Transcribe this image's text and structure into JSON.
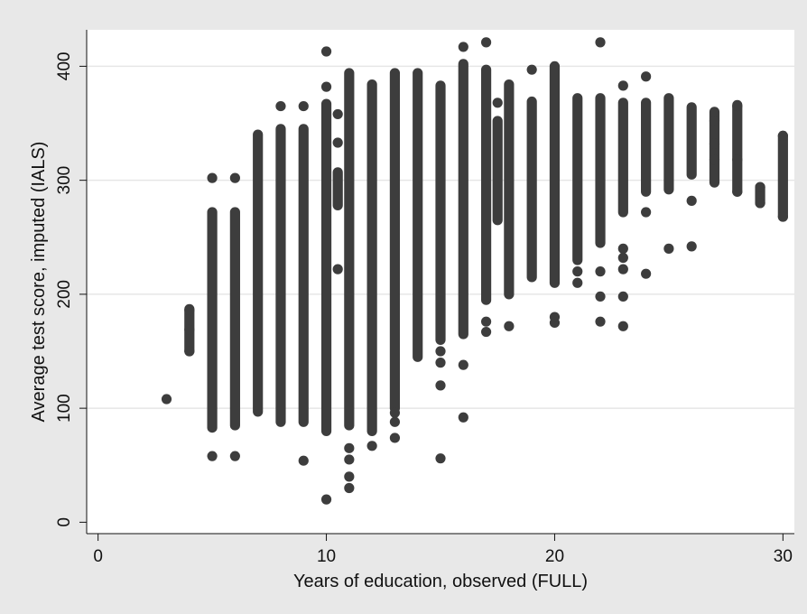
{
  "chart_data": {
    "type": "scatter",
    "title": "",
    "xlabel": "Years of education, observed (FULL)",
    "ylabel": "Average test score, imputed (IALS)",
    "xlim": [
      -0.5,
      30.5
    ],
    "ylim": [
      -10,
      432
    ],
    "xticks": [
      0,
      10,
      20,
      30
    ],
    "yticks": [
      0,
      100,
      200,
      300,
      400
    ],
    "grid": "horizontal",
    "legend": "none",
    "colors": {
      "background": "#e8e8e8",
      "plot_area": "#ffffff",
      "marker": "#3d3d3d",
      "grid": "#e6e6e6"
    },
    "columns": [
      {
        "x": 3,
        "y": [
          108
        ]
      },
      {
        "x": 4,
        "min": 150,
        "max": 187,
        "y": [
          150,
          169,
          186
        ]
      },
      {
        "x": 5,
        "min": 83,
        "max": 272,
        "y": [
          58,
          302
        ]
      },
      {
        "x": 6,
        "min": 85,
        "max": 272,
        "y": [
          58,
          302
        ]
      },
      {
        "x": 7,
        "min": 97,
        "max": 340,
        "y": []
      },
      {
        "x": 8,
        "min": 88,
        "max": 345,
        "y": [
          365
        ]
      },
      {
        "x": 9,
        "min": 88,
        "max": 345,
        "y": [
          54,
          365
        ]
      },
      {
        "x": 10,
        "min": 80,
        "max": 367,
        "y": [
          20,
          382,
          413
        ]
      },
      {
        "x": 10.5,
        "min": 278,
        "max": 307,
        "y": [
          222,
          333,
          358
        ]
      },
      {
        "x": 11,
        "min": 85,
        "max": 394,
        "y": [
          30,
          40,
          55,
          65
        ]
      },
      {
        "x": 12,
        "min": 80,
        "max": 384,
        "y": [
          67
        ]
      },
      {
        "x": 13,
        "min": 100,
        "max": 394,
        "y": [
          74,
          88,
          96
        ]
      },
      {
        "x": 14,
        "min": 145,
        "max": 394,
        "y": []
      },
      {
        "x": 15,
        "min": 160,
        "max": 383,
        "y": [
          56,
          120,
          140,
          150
        ]
      },
      {
        "x": 16,
        "min": 165,
        "max": 402,
        "y": [
          92,
          138,
          417
        ]
      },
      {
        "x": 17,
        "min": 195,
        "max": 397,
        "y": [
          167,
          176,
          421
        ]
      },
      {
        "x": 17.5,
        "min": 265,
        "max": 352,
        "y": [
          368
        ]
      },
      {
        "x": 18,
        "min": 200,
        "max": 384,
        "y": [
          172
        ]
      },
      {
        "x": 19,
        "min": 215,
        "max": 369,
        "y": [
          397
        ]
      },
      {
        "x": 20,
        "min": 210,
        "max": 400,
        "y": [
          175,
          180
        ]
      },
      {
        "x": 21,
        "min": 230,
        "max": 372,
        "y": [
          210,
          220
        ]
      },
      {
        "x": 22,
        "min": 245,
        "max": 372,
        "y": [
          176,
          198,
          220,
          421
        ]
      },
      {
        "x": 23,
        "min": 272,
        "max": 368,
        "y": [
          172,
          198,
          222,
          232,
          240,
          383
        ]
      },
      {
        "x": 24,
        "min": 290,
        "max": 368,
        "y": [
          218,
          272,
          391
        ]
      },
      {
        "x": 25,
        "min": 292,
        "max": 372,
        "y": [
          240
        ]
      },
      {
        "x": 26,
        "min": 305,
        "max": 364,
        "y": [
          242,
          282
        ]
      },
      {
        "x": 27,
        "min": 298,
        "max": 360,
        "y": [
          318,
          332,
          352
        ]
      },
      {
        "x": 28,
        "min": 290,
        "max": 366,
        "y": [
          290,
          318,
          365
        ]
      },
      {
        "x": 29,
        "min": 280,
        "max": 294,
        "y": [
          280,
          294
        ]
      },
      {
        "x": 30,
        "min": 268,
        "max": 339,
        "y": [
          268,
          339
        ]
      }
    ]
  }
}
